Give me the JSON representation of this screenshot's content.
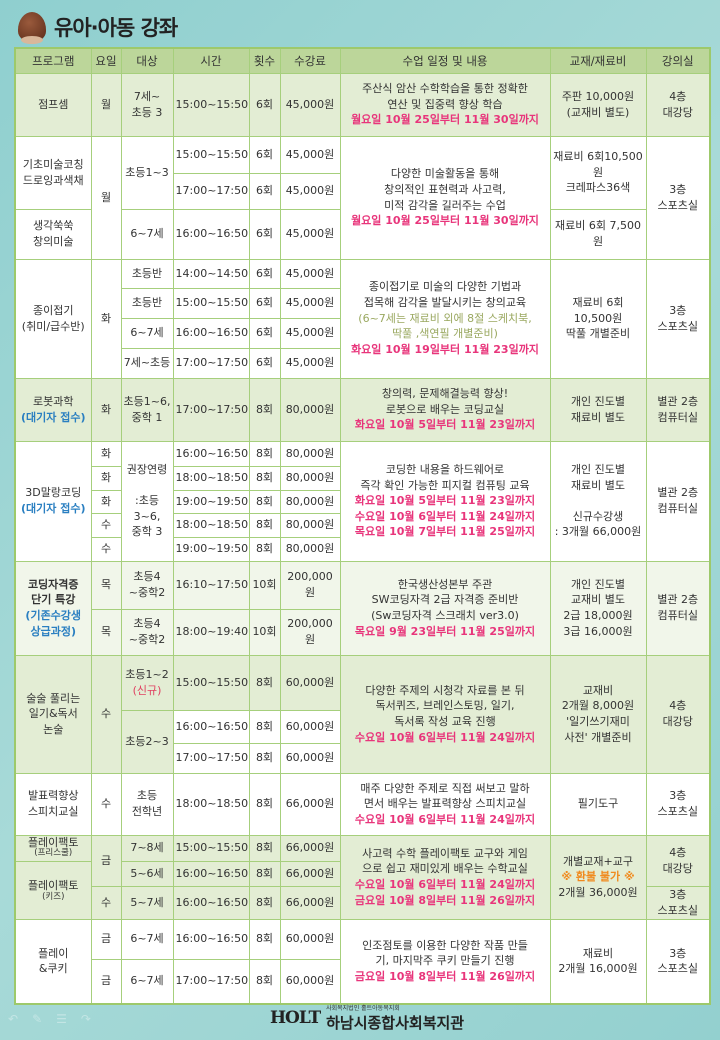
{
  "title": "유아·아동 강좌",
  "headers": [
    "프로그램",
    "요일",
    "대상",
    "시간",
    "횟수",
    "수강료",
    "수업 일정 및 내용",
    "교재/재료비",
    "강의실"
  ],
  "p0": {
    "name": "점프셈",
    "day": "월",
    "target": "7세~\n초등 3",
    "time": "15:00~15:50",
    "count": "6회",
    "fee": "45,000원",
    "desc": "주산식 암산 수학학습을 통한 정확한\n연산 및 집중력 향상 학습",
    "period": "월요일 10월 25일부터 11월 30일까지",
    "material": "주판 10,000원\n(교재비 별도)",
    "room": "4층\n대강당"
  },
  "p1": {
    "names": [
      "기초미술코칭\n드로잉과색채",
      "생각쑥쑥\n창의미술"
    ],
    "day": "월",
    "targets": [
      "초등1~3",
      "6~7세"
    ],
    "sessions": [
      {
        "time": "15:00~15:50",
        "count": "6회",
        "fee": "45,000원"
      },
      {
        "time": "17:00~17:50",
        "count": "6회",
        "fee": "45,000원"
      },
      {
        "time": "16:00~16:50",
        "count": "6회",
        "fee": "45,000원"
      }
    ],
    "desc": "다양한 미술활동을 통해\n창의적인 표현력과 사고력,\n미적 감각을 길러주는 수업",
    "period": "월요일 10월 25일부터 11월 30일까지",
    "materials": [
      "재료비 6회10,500\n원\n크레파스36색",
      "재료비 6회 7,500\n원"
    ],
    "room": "3층\n스포츠실"
  },
  "p2": {
    "name": "종이접기\n(취미/급수반)",
    "day": "화",
    "sessions": [
      {
        "target": "초등반",
        "time": "14:00~14:50",
        "count": "6회",
        "fee": "45,000원"
      },
      {
        "target": "초등반",
        "time": "15:00~15:50",
        "count": "6회",
        "fee": "45,000원"
      },
      {
        "target": "6~7세",
        "time": "16:00~16:50",
        "count": "6회",
        "fee": "45,000원"
      },
      {
        "target": "7세~초등",
        "time": "17:00~17:50",
        "count": "6회",
        "fee": "45,000원"
      }
    ],
    "desc": "종이접기로  미술의 다양한 기법과\n접목해 감각을 발달시키는 창의교육",
    "note": "(6~7세는 재료비 외에 8절 스케치북,\n딱풀 ,색연필 개별준비)",
    "period": "화요일 10월 19일부터 11월 23일까지",
    "material": "재료비 6회\n10,500원\n딱풀 개별준비",
    "room": "3층\n스포츠실"
  },
  "p3": {
    "name": "로봇과학",
    "note": "(대기자 접수)",
    "day": "화",
    "target": "초등1~6,\n중학 1",
    "time": "17:00~17:50",
    "count": "8회",
    "fee": "80,000원",
    "desc": "창의력, 문제해결능력 향상!\n로봇으로 배우는 코딩교실",
    "period": "화요일 10월 5일부터 11월 23일까지",
    "material": "개인 진도별\n재료비 별도",
    "room": "별관 2층\n컴퓨터실"
  },
  "p4": {
    "name": "3D말랑코딩",
    "note": "(대기자 접수)",
    "target": "권장연령\n\n:초등\n3~6,\n중학 3",
    "sessions": [
      {
        "day": "화",
        "time": "16:00~16:50",
        "count": "8회",
        "fee": "80,000원"
      },
      {
        "day": "화",
        "time": "18:00~18:50",
        "count": "8회",
        "fee": "80,000원"
      },
      {
        "day": "화",
        "time": "19:00~19:50",
        "count": "8회",
        "fee": "80,000원"
      },
      {
        "day": "수",
        "time": "18:00~18:50",
        "count": "8회",
        "fee": "80,000원"
      },
      {
        "day": "수",
        "time": "19:00~19:50",
        "count": "8회",
        "fee": "80,000원"
      }
    ],
    "desc": "코딩한 내용을 하드웨어로\n즉각 확인 가능한 피지컬 컴퓨팅 교육",
    "periods": [
      "화요일 10월 5일부터 11월 23일까지",
      "수요일 10월 6일부터 11월 24일까지",
      "목요일 10월 7일부터 11월 25일까지"
    ],
    "material": "개인 진도별\n재료비 별도\n\n신규수강생\n: 3개월 66,000원",
    "room": "별관 2층\n컴퓨터실"
  },
  "p5": {
    "name": "코딩자격증\n단기 특강",
    "note": "(기존수강생\n상급과정)",
    "sessions": [
      {
        "day": "목",
        "target": "초등4\n~중학2",
        "time": "16:10~17:50",
        "count": "10회",
        "fee": "200,000원"
      },
      {
        "day": "목",
        "target": "초등4\n~중학2",
        "time": "18:00~19:40",
        "count": "10회",
        "fee": "200,000원"
      }
    ],
    "desc": "한국생산성본부 주관\nSW코딩자격 2급 자격증 준비반\n(Sw코딩자격 스크래치 ver3.0)",
    "period": "목요일 9월 23일부터 11월 25일까지",
    "material": "개인 진도별\n교재비 별도\n2급 18,000원\n3급 16,000원",
    "room": "별관 2층\n컴퓨터실"
  },
  "p6": {
    "name": "술술 풀리는\n일기&독서\n논술",
    "day": "수",
    "targets": [
      "초등1~2",
      "초등2~3"
    ],
    "new_badge": "(신규)",
    "sessions": [
      {
        "time": "15:00~15:50",
        "count": "8회",
        "fee": "60,000원"
      },
      {
        "time": "16:00~16:50",
        "count": "8회",
        "fee": "60,000원"
      },
      {
        "time": "17:00~17:50",
        "count": "8회",
        "fee": "60,000원"
      }
    ],
    "desc": "다양한 주제의 시청각 자료를 본 뒤\n독서퀴즈, 브레인스토밍, 일기,\n독서록 작성 교육 진행",
    "period": "수요일 10월 6일부터 11월 24일까지",
    "material": "교재비\n2개월 8,000원\n'일기쓰기재미\n사전' 개별준비",
    "room": "4층\n대강당"
  },
  "p7": {
    "name": "발표력향상\n스피치교실",
    "day": "수",
    "target": "초등\n전학년",
    "time": "18:00~18:50",
    "count": "8회",
    "fee": "66,000원",
    "desc": "매주 다양한 주제로  직접 써보고 말하\n면서 배우는 발표력향상 스피치교실",
    "period": "수요일 10월 6일부터 11월 24일까지",
    "material": "필기도구",
    "room": "3층\n스포츠실"
  },
  "p8": {
    "names": [
      {
        "name": "플레이팩토",
        "sub": "(프리스쿨)"
      },
      {
        "name": "플레이팩토",
        "sub": "(키즈)"
      }
    ],
    "days": [
      "금",
      "수"
    ],
    "sessions": [
      {
        "target": "7~8세",
        "time": "15:00~15:50",
        "count": "8회",
        "fee": "66,000원"
      },
      {
        "target": "5~6세",
        "time": "16:00~16:50",
        "count": "8회",
        "fee": "66,000원"
      },
      {
        "target": "5~7세",
        "time": "16:00~16:50",
        "count": "8회",
        "fee": "66,000원"
      }
    ],
    "desc": "사고력 수학 플레이팩토 교구와 게임\n으로 쉽고 재미있게 배우는 수학교실",
    "periods": [
      "수요일 10월 6일부터 11월 24일까지",
      "금요일 10월 8일부터 11월 26일까지"
    ],
    "material": "개별교재+교구",
    "warning": "※ 환불 불가 ※",
    "material2": "2개월 36,000원",
    "rooms": [
      "4층\n대강당",
      "3층\n스포츠실"
    ]
  },
  "p9": {
    "name": "플레이\n&쿠키",
    "sessions": [
      {
        "day": "금",
        "target": "6~7세",
        "time": "16:00~16:50",
        "count": "8회",
        "fee": "60,000원"
      },
      {
        "day": "금",
        "target": "6~7세",
        "time": "17:00~17:50",
        "count": "8회",
        "fee": "60,000원"
      }
    ],
    "desc": "인조점토를 이용한 다양한 작품 만들\n기, 마지막주 쿠키 만들기 진행",
    "period": "금요일 10월 8일부터 11월 26일까지",
    "material": "재료비\n2개월 16,000원",
    "room": "3층\n스포츠실"
  },
  "footer": {
    "logo": "HOLT",
    "org_small": "사회복지법인 홀트아동복지회",
    "org_name": "하남시종합사회복지관"
  }
}
